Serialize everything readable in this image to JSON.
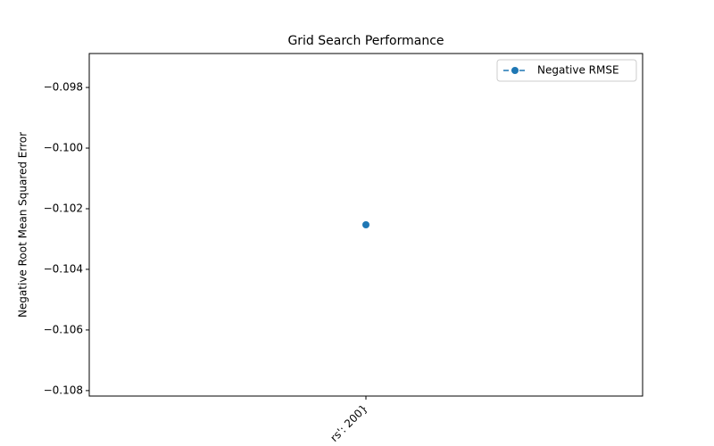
{
  "chart_data": {
    "type": "line",
    "title": "Grid Search Performance",
    "y_label": "Negative Root Mean Squared Error",
    "categories": [
      "rs': 200}"
    ],
    "series": [
      {
        "name": "Negative RMSE",
        "color": "#1f77b4",
        "values": [
          -0.10253
        ]
      }
    ],
    "ylim": [
      -0.10818,
      -0.09688
    ],
    "yticks": [
      {
        "value": -0.098,
        "label": "−0.098"
      },
      {
        "value": -0.1,
        "label": "−0.100"
      },
      {
        "value": -0.102,
        "label": "−0.102"
      },
      {
        "value": -0.104,
        "label": "−0.104"
      },
      {
        "value": -0.106,
        "label": "−0.106"
      },
      {
        "value": -0.108,
        "label": "−0.108"
      }
    ],
    "legend": "upper right",
    "grid": false
  }
}
